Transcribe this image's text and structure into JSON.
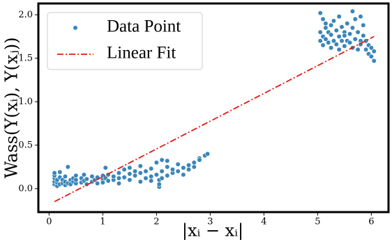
{
  "chart_data": {
    "type": "scatter",
    "x_label": "|xᵢ − xᵢ|",
    "y_label": "Wass(Y(xᵢ), Y(xⱼ))",
    "xlim": [
      -0.2,
      6.32
    ],
    "ylim": [
      -0.27,
      2.13
    ],
    "xticks": [
      0,
      1,
      2,
      3,
      4,
      5,
      6
    ],
    "yticks": [
      {
        "value": 0,
        "label": "0.0"
      },
      {
        "value": 0.5,
        "label": "0.5"
      },
      {
        "value": 1,
        "label": "1.0"
      },
      {
        "value": 1.5,
        "label": "1.5"
      },
      {
        "value": 2,
        "label": "2.0"
      }
    ],
    "legend": "upper left",
    "series": [
      {
        "name": "Data Point",
        "type": "scatter",
        "color": "#3a86b9",
        "x": [
          0.1,
          0.1,
          0.1,
          0.1,
          0.1,
          0.15,
          0.15,
          0.15,
          0.2,
          0.2,
          0.2,
          0.25,
          0.25,
          0.3,
          0.3,
          0.3,
          0.35,
          0.35,
          0.4,
          0.4,
          0.45,
          0.45,
          0.5,
          0.5,
          0.5,
          0.6,
          0.6,
          0.65,
          0.65,
          0.7,
          0.7,
          0.8,
          0.8,
          0.85,
          0.9,
          0.9,
          1.0,
          1.0,
          1.0,
          1.05,
          1.05,
          1.1,
          1.1,
          1.2,
          1.2,
          1.3,
          1.3,
          1.3,
          1.4,
          1.4,
          1.5,
          1.5,
          1.5,
          1.6,
          1.6,
          1.7,
          1.7,
          1.7,
          1.8,
          1.8,
          1.9,
          1.9,
          1.9,
          2.0,
          2.0,
          2.05,
          2.05,
          2.05,
          2.1,
          2.1,
          2.1,
          2.2,
          2.2,
          2.2,
          2.3,
          2.3,
          2.4,
          2.4,
          2.5,
          2.5,
          2.6,
          2.6,
          2.7,
          2.7,
          2.8,
          2.8,
          2.9,
          2.95,
          5.05,
          5.05,
          5.05,
          5.1,
          5.1,
          5.1,
          5.15,
          5.15,
          5.15,
          5.2,
          5.2,
          5.25,
          5.25,
          5.25,
          5.3,
          5.3,
          5.35,
          5.35,
          5.4,
          5.4,
          5.4,
          5.45,
          5.45,
          5.5,
          5.5,
          5.5,
          5.55,
          5.55,
          5.6,
          5.6,
          5.65,
          5.65,
          5.65,
          5.7,
          5.7,
          5.75,
          5.75,
          5.8,
          5.8,
          5.8,
          5.85,
          5.85,
          5.9,
          5.9,
          5.95,
          5.95,
          6.0,
          6.0,
          6.05,
          6.05
        ],
        "values": [
          0.05,
          0.08,
          0.12,
          0.15,
          0.18,
          0.03,
          0.07,
          0.1,
          0.05,
          0.13,
          0.19,
          0.06,
          0.1,
          0.04,
          0.08,
          0.14,
          0.25,
          0.06,
          0.1,
          0.05,
          0.08,
          0.12,
          0.06,
          0.15,
          0.1,
          0.07,
          0.12,
          0.09,
          0.16,
          0.05,
          0.11,
          0.08,
          0.14,
          0.1,
          0.06,
          0.13,
          0.1,
          0.15,
          0.07,
          0.24,
          0.12,
          0.09,
          0.16,
          0.1,
          0.14,
          0.12,
          0.18,
          0.06,
          0.13,
          0.22,
          0.1,
          0.17,
          0.24,
          0.15,
          0.2,
          0.08,
          0.18,
          0.26,
          0.12,
          0.2,
          0.14,
          0.23,
          0.09,
          0.16,
          0.3,
          0.02,
          0.05,
          0.1,
          0.33,
          0.2,
          0.12,
          0.15,
          0.25,
          0.32,
          0.18,
          0.22,
          0.2,
          0.28,
          0.16,
          0.24,
          0.22,
          0.27,
          0.25,
          0.3,
          0.35,
          0.33,
          0.38,
          0.4,
          1.7,
          1.8,
          2.02,
          1.65,
          1.75,
          1.95,
          1.9,
          1.72,
          1.85,
          1.8,
          1.68,
          1.62,
          1.77,
          1.88,
          1.7,
          1.93,
          1.82,
          1.66,
          1.75,
          1.6,
          1.98,
          1.7,
          1.86,
          1.64,
          1.8,
          1.76,
          1.9,
          1.7,
          1.68,
          1.78,
          2.04,
          1.85,
          1.62,
          1.72,
          1.95,
          1.6,
          1.8,
          1.98,
          1.7,
          1.66,
          1.76,
          1.88,
          1.6,
          1.7,
          1.55,
          1.65,
          1.52,
          1.62,
          1.47,
          1.58
        ]
      },
      {
        "name": "Linear Fit",
        "type": "line",
        "dash": "dash-dot",
        "color": "#e8170f",
        "x": [
          0.1,
          6.05
        ],
        "values": [
          -0.15,
          1.75
        ]
      }
    ]
  }
}
